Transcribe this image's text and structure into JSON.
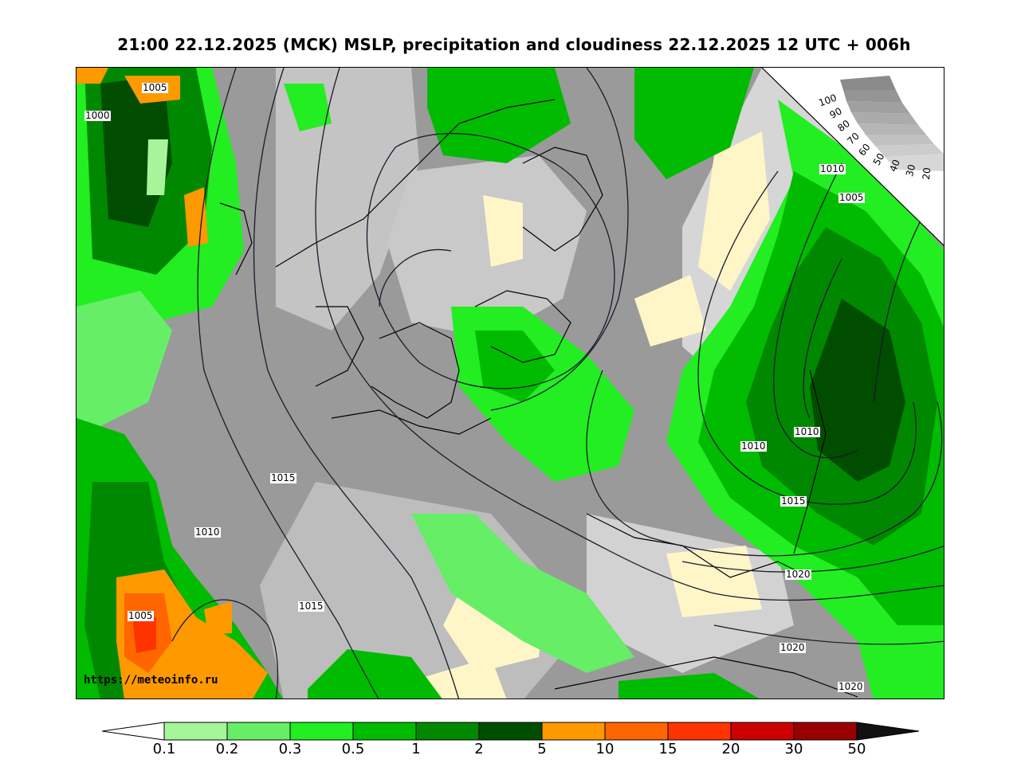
{
  "title": "21:00 22.12.2025 (MCK) MSLP, precipitation and cloudiness 22.12.2025 12 UTC + 006h",
  "credit": "https://meteoinfo.ru",
  "cloud_scale": {
    "labels": [
      "100",
      "90",
      "80",
      "70",
      "60",
      "50",
      "40",
      "30",
      "20"
    ]
  },
  "isobar_labels": [
    "1005",
    "1000",
    "1010",
    "1005",
    "1015",
    "1010",
    "1010",
    "1010",
    "1015",
    "1005",
    "1015",
    "1020",
    "1020",
    "1020"
  ],
  "precip_legend": {
    "labels": [
      "0.1",
      "0.2",
      "0.3",
      "0.5",
      "1",
      "2",
      "5",
      "10",
      "15",
      "20",
      "30",
      "50"
    ],
    "colors": [
      "#ffffff",
      "#a6f59a",
      "#66ee66",
      "#22ee22",
      "#00bb00",
      "#008800",
      "#004d00",
      "#ff9900",
      "#ff6600",
      "#ff3300",
      "#cc0000",
      "#990000",
      "#111111"
    ]
  },
  "colors": {
    "cloud_gray": "#9a9a9a",
    "clear_yellow": "#fff6c8",
    "coast": "#000000"
  }
}
